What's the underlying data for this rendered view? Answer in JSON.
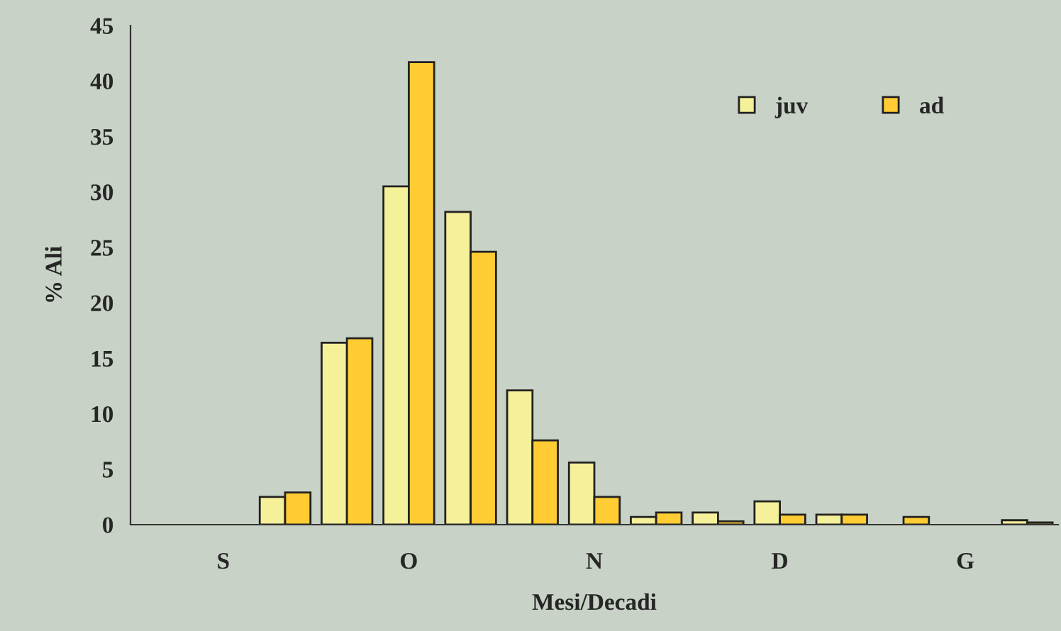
{
  "chart_data": {
    "type": "bar",
    "xlabel": "Mesi/Decadi",
    "ylabel": "% Ali",
    "categories": [
      null,
      "S",
      null,
      null,
      "O",
      null,
      null,
      "N",
      null,
      null,
      "D",
      null,
      null,
      "G",
      null
    ],
    "series": [
      {
        "name": "juv",
        "color": "#f5f09a",
        "values": [
          null,
          null,
          2.5,
          16.4,
          30.5,
          28.2,
          12.1,
          5.6,
          0.7,
          1.1,
          2.1,
          0.9,
          null,
          null,
          0.4
        ]
      },
      {
        "name": "ad",
        "color": "#ffcc33",
        "values": [
          null,
          null,
          2.9,
          16.8,
          41.7,
          24.6,
          7.6,
          2.5,
          1.1,
          0.3,
          0.9,
          0.9,
          0.7,
          null,
          0.2
        ]
      }
    ],
    "ylim": [
      0,
      45
    ],
    "yticks": [
      0,
      5,
      10,
      15,
      20,
      25,
      30,
      35,
      40,
      45
    ],
    "grid": false,
    "legend": "top right"
  }
}
